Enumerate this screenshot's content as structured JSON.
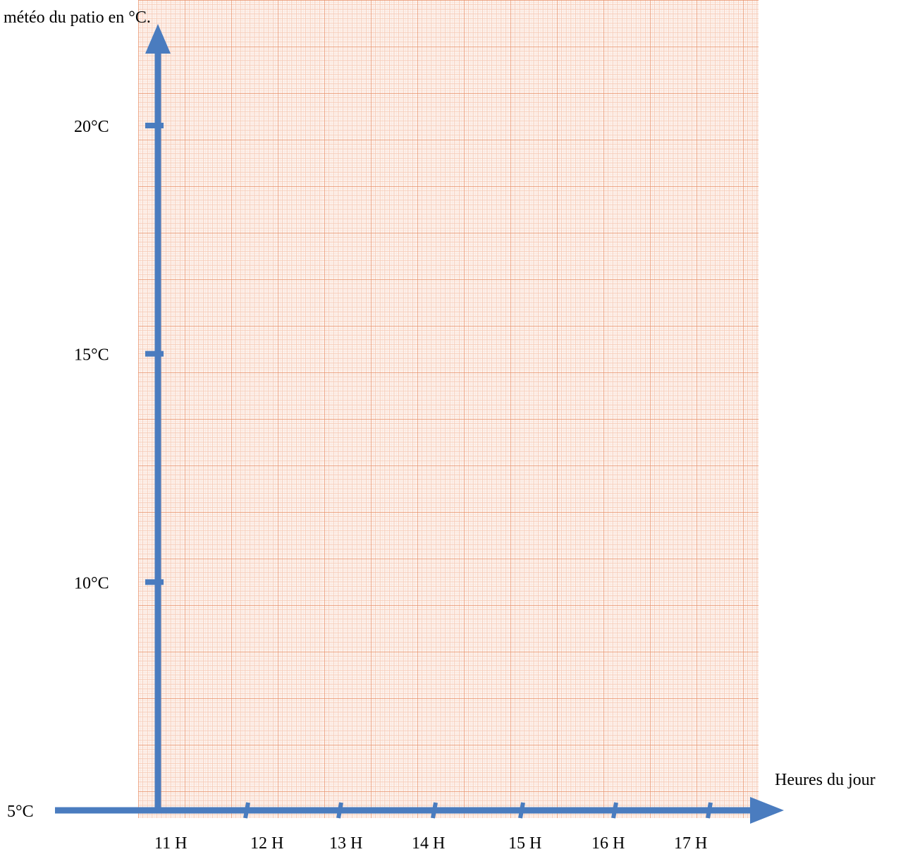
{
  "chart_data": {
    "type": "line",
    "title": "météo du patio en °C.",
    "xlabel": "Heures du jour",
    "ylabel": "",
    "x_ticks": [
      "11 H",
      "12 H",
      "13 H",
      "14 H",
      "15 H",
      "16 H",
      "17 H"
    ],
    "y_ticks": [
      "5°C",
      "10°C",
      "15°C",
      "20°C"
    ],
    "y_tick_values": [
      5,
      10,
      15,
      20
    ],
    "ylim": [
      5,
      20
    ],
    "series": [],
    "grid": true
  },
  "colors": {
    "grid_major": "#e8916a",
    "grid_minor": "#f6c9b4",
    "grid_sub": "#fbe2d6",
    "paper": "#fdf3ee",
    "axis": "#4a7cbf"
  }
}
